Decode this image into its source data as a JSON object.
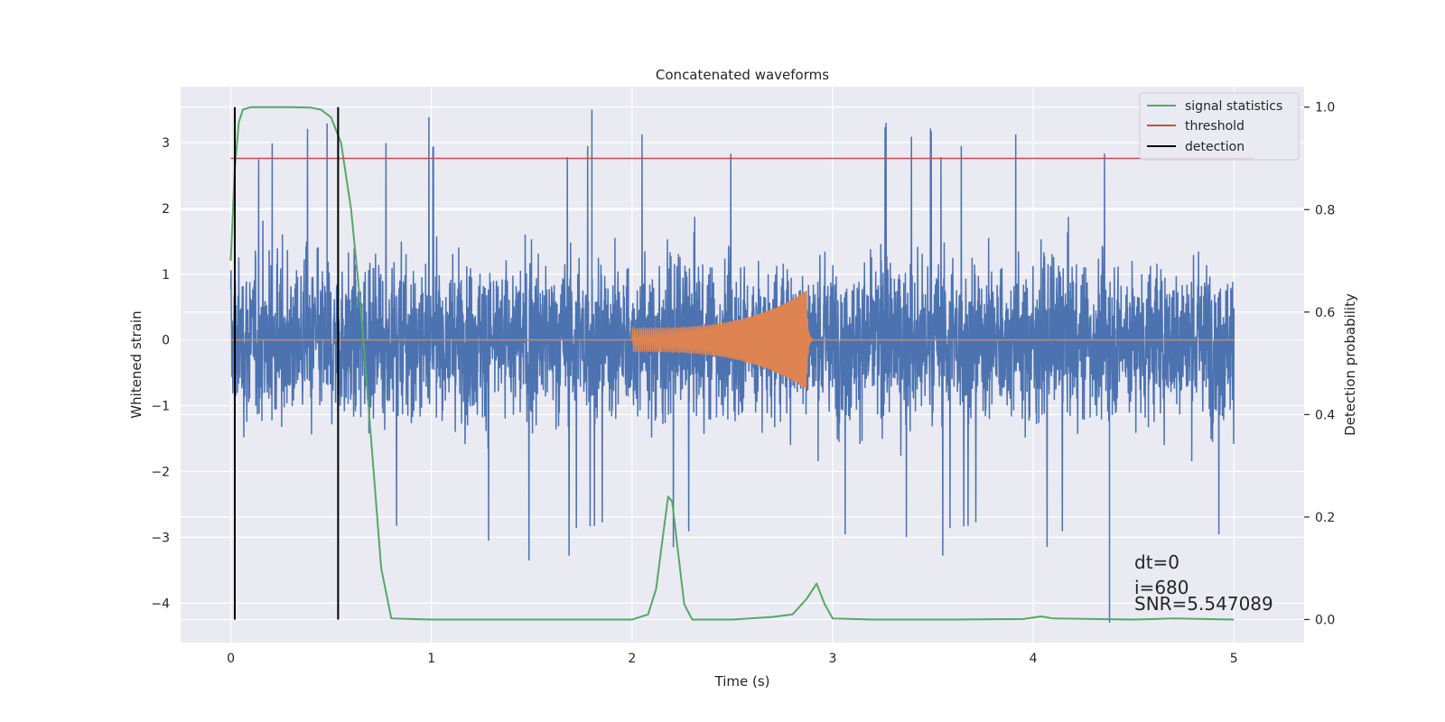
{
  "chart_data": {
    "type": "line",
    "title": "Concatenated waveforms",
    "xlabel": "Time (s)",
    "ylabel": "Whitened strain",
    "y2label": "Detection probability",
    "xlim": [
      -0.25,
      5.35
    ],
    "ylim": [
      -4.6,
      3.85
    ],
    "y2lim": [
      -0.045,
      1.04
    ],
    "xticks": [
      0,
      1,
      2,
      3,
      4,
      5
    ],
    "yticks": [
      -4,
      -3,
      -2,
      -1,
      0,
      1,
      2,
      3
    ],
    "y2ticks": [
      0.0,
      0.2,
      0.4,
      0.6,
      0.8,
      1.0
    ],
    "xtick_labels": [
      "0",
      "1",
      "2",
      "3",
      "4",
      "5"
    ],
    "ytick_labels": [
      "−4",
      "−3",
      "−2",
      "−1",
      "0",
      "1",
      "2",
      "3"
    ],
    "y2tick_labels": [
      "0.0",
      "0.2",
      "0.4",
      "0.6",
      "0.8",
      "1.0"
    ],
    "grid": true,
    "legend_position": "top-right",
    "legend": [
      {
        "name": "signal statistics",
        "color": "#55a868"
      },
      {
        "name": "threshold",
        "color": "#c44e52"
      },
      {
        "name": "detection",
        "color": "#000000"
      }
    ],
    "strain_series": {
      "color": "#4c72b0",
      "x_range": [
        0,
        5
      ],
      "amplitude_typical": 1.9,
      "max": 3.5,
      "min": -4.3
    },
    "template_series": {
      "color": "#dd8452",
      "x_range": [
        2.0,
        2.9
      ],
      "amplitude_start": 0.18,
      "amplitude_peak": 0.75,
      "peak_x": 2.87
    },
    "signal_statistics": {
      "color": "#55a868",
      "x": [
        0,
        0.02,
        0.04,
        0.06,
        0.1,
        0.2,
        0.3,
        0.4,
        0.45,
        0.5,
        0.55,
        0.6,
        0.65,
        0.7,
        0.75,
        0.8,
        1.0,
        1.5,
        2.0,
        2.08,
        2.12,
        2.15,
        2.18,
        2.2,
        2.23,
        2.26,
        2.3,
        2.5,
        2.7,
        2.8,
        2.87,
        2.92,
        2.96,
        3.0,
        3.2,
        3.6,
        3.95,
        4.04,
        4.1,
        4.5,
        4.7,
        5.0
      ],
      "y": [
        0.7,
        0.88,
        0.97,
        0.995,
        1.0,
        1.0,
        1.0,
        0.999,
        0.995,
        0.98,
        0.93,
        0.8,
        0.6,
        0.35,
        0.1,
        0.002,
        0.0,
        0.0,
        0.0,
        0.01,
        0.06,
        0.15,
        0.24,
        0.23,
        0.13,
        0.03,
        0.0,
        0.0,
        0.005,
        0.01,
        0.04,
        0.07,
        0.03,
        0.002,
        0.0,
        0.0,
        0.001,
        0.006,
        0.002,
        0.0,
        0.002,
        0.0
      ]
    },
    "threshold": {
      "value": 0.9,
      "x_range": [
        0,
        5.1
      ],
      "color": "#c44e52"
    },
    "detections": {
      "x": [
        0.02,
        0.535
      ],
      "y_range": [
        0,
        1.0
      ],
      "color": "#000000"
    },
    "annotations": [
      "dt=0",
      "i=680",
      "SNR=5.547089"
    ],
    "annotation_x": 4.5
  }
}
